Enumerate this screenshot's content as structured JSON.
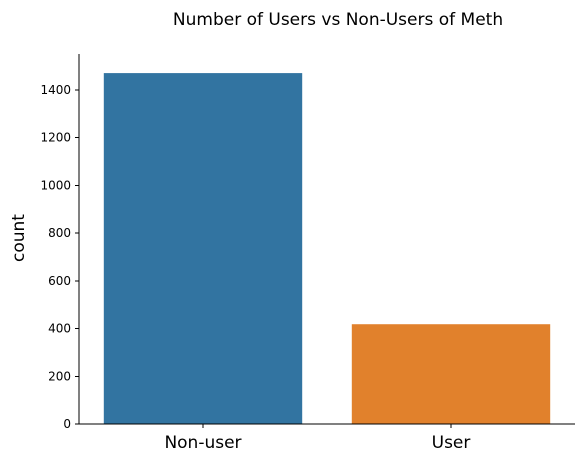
{
  "chart_data": {
    "type": "bar",
    "title": "Number of Users vs Non-Users of Meth",
    "xlabel": "",
    "ylabel": "count",
    "categories": [
      "Non-user",
      "User"
    ],
    "values": [
      1470,
      418
    ],
    "ylim": [
      0,
      1550
    ],
    "yticks": [
      0,
      200,
      400,
      600,
      800,
      1000,
      1200,
      1400
    ],
    "colors": [
      "#3274a1",
      "#e1812c"
    ],
    "grid": false,
    "legend": "none"
  }
}
